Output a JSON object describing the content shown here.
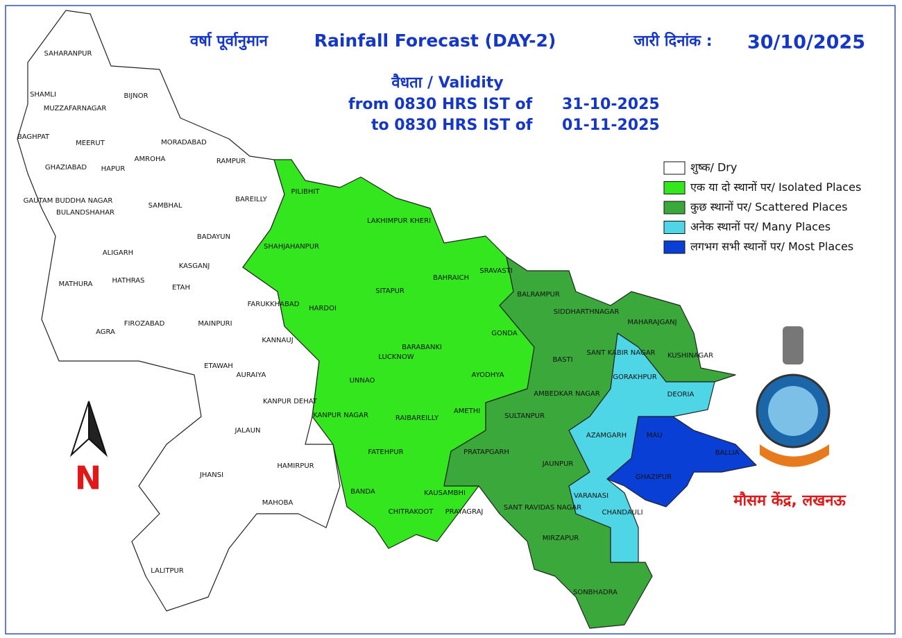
{
  "header": {
    "title_hi": "वर्षा पूर्वानुमान",
    "title_en": "Rainfall Forecast (DAY-2)",
    "issue_label": "जारी दिनांक :",
    "issue_date": "30/10/2025"
  },
  "validity": {
    "label": "वैधता / Validity",
    "from_label": "from 0830 HRS IST of",
    "from_date": "31-10-2025",
    "to_label": "to 0830 HRS IST of",
    "to_date": "01-11-2025"
  },
  "legend": [
    {
      "label": "शुष्क/ Dry",
      "color": "#ffffff"
    },
    {
      "label": "एक या दो स्थानों पर/ Isolated Places",
      "color": "#33e61e"
    },
    {
      "label": "कुछ स्थानों पर/ Scattered Places",
      "color": "#3aa83a"
    },
    {
      "label": "अनेक स्थानों पर/ Many Places",
      "color": "#4fd6e6"
    },
    {
      "label": "लगभग सभी स्थानों पर/ Most Places",
      "color": "#0a3fd6"
    }
  ],
  "north": "N",
  "office": "मौसम केंद्र, लखनऊ",
  "districts": [
    "SAHARANPUR",
    "SHAMLI",
    "BIJNOR",
    "MUZZAFARNAGAR",
    "BAGHPAT",
    "MEERUT",
    "MORADABAD",
    "AMROHA",
    "RAMPUR",
    "GHAZIABAD",
    "HAPUR",
    "PILIBHIT",
    "GAUTAM BUDDHA NAGAR",
    "BAREILLY",
    "SAMBHAL",
    "BULANDSHAHAR",
    "LAKHIMPUR KHERI",
    "BADAYUN",
    "SHAHJAHANPUR",
    "ALIGARH",
    "KASGANJ",
    "SRAVASTI",
    "BAHRAICH",
    "MATHURA",
    "HATHRAS",
    "ETAH",
    "SITAPUR",
    "BALRAMPUR",
    "FARUKKHABAD",
    "HARDOI",
    "SIDDHARTHNAGAR",
    "MAHARAJGANJ",
    "FIROZABAD",
    "MAINPURI",
    "GONDA",
    "AGRA",
    "KANNAUJ",
    "BARABANKI",
    "SANT KABIR NAGAR",
    "LUCKNOW",
    "BASTI",
    "KUSHINAGAR",
    "GORAKHPUR",
    "ETAWAH",
    "AYODHYA",
    "UNNAO",
    "AURAIYA",
    "AMBEDKAR NAGAR",
    "DEORIA",
    "KANPUR DEHAT",
    "AMETHI",
    "KANPUR NAGAR",
    "RAIBAREILLY",
    "SULTANPUR",
    "JALAUN",
    "AZAMGARH",
    "MAU",
    "BALLIA",
    "FATEHPUR",
    "PRATAPGARH",
    "HAMIRPUR",
    "JAUNPUR",
    "JHANSI",
    "GHAZIPUR",
    "BANDA",
    "KAUSAMBHI",
    "VARANASI",
    "MAHOBA",
    "SANT RAVIDAS NAGAR",
    "CHITRAKOOT",
    "PRAYAGRAJ",
    "CHANDAULI",
    "MIRZAPUR",
    "LALITPUR",
    "SONBHADRA"
  ]
}
